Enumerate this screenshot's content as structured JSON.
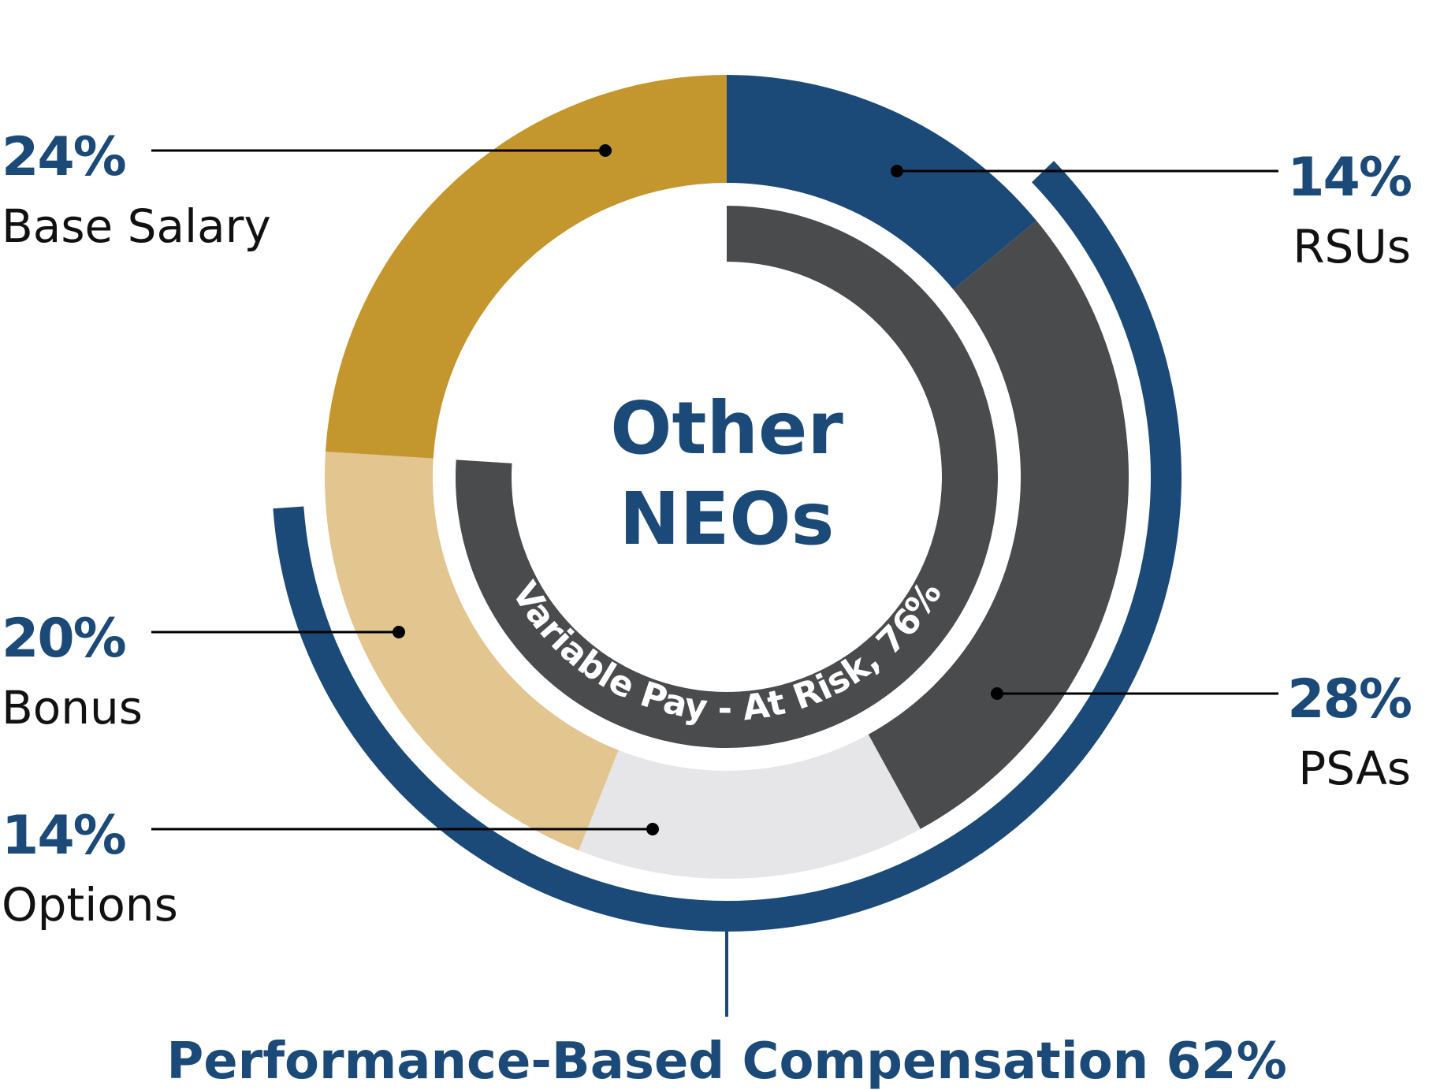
{
  "colors": {
    "navy": "#1b4a78",
    "gold": "#c4962e",
    "tan": "#e2c58f",
    "light_gray": "#e6e6e8",
    "dark_gray": "#4a4b4d",
    "text": "#111111"
  },
  "center_label": {
    "line1": "Other",
    "line2": "NEOs"
  },
  "variable_pay_label": "Variable Pay - At Risk, 76%",
  "performance_label": "Performance-Based Compensation 62%",
  "chart_data": {
    "type": "pie",
    "segments": [
      {
        "name": "RSUs",
        "value": 14,
        "pct_label": "14%",
        "color": "#1b4a78"
      },
      {
        "name": "PSAs",
        "value": 28,
        "pct_label": "28%",
        "color": "#4a4b4d"
      },
      {
        "name": "Options",
        "value": 14,
        "pct_label": "14%",
        "color": "#e6e6e8"
      },
      {
        "name": "Bonus",
        "value": 20,
        "pct_label": "20%",
        "color": "#e2c58f"
      },
      {
        "name": "Base Salary",
        "value": 24,
        "pct_label": "24%",
        "color": "#c4962e"
      }
    ],
    "variable_pay_pct": 76,
    "performance_based_pct": 62
  },
  "legend": {
    "base_salary": {
      "pct": "24%",
      "name": "Base Salary"
    },
    "bonus": {
      "pct": "20%",
      "name": "Bonus"
    },
    "options": {
      "pct": "14%",
      "name": "Options"
    },
    "rsus": {
      "pct": "14%",
      "name": "RSUs"
    },
    "psas": {
      "pct": "28%",
      "name": "PSAs"
    }
  }
}
